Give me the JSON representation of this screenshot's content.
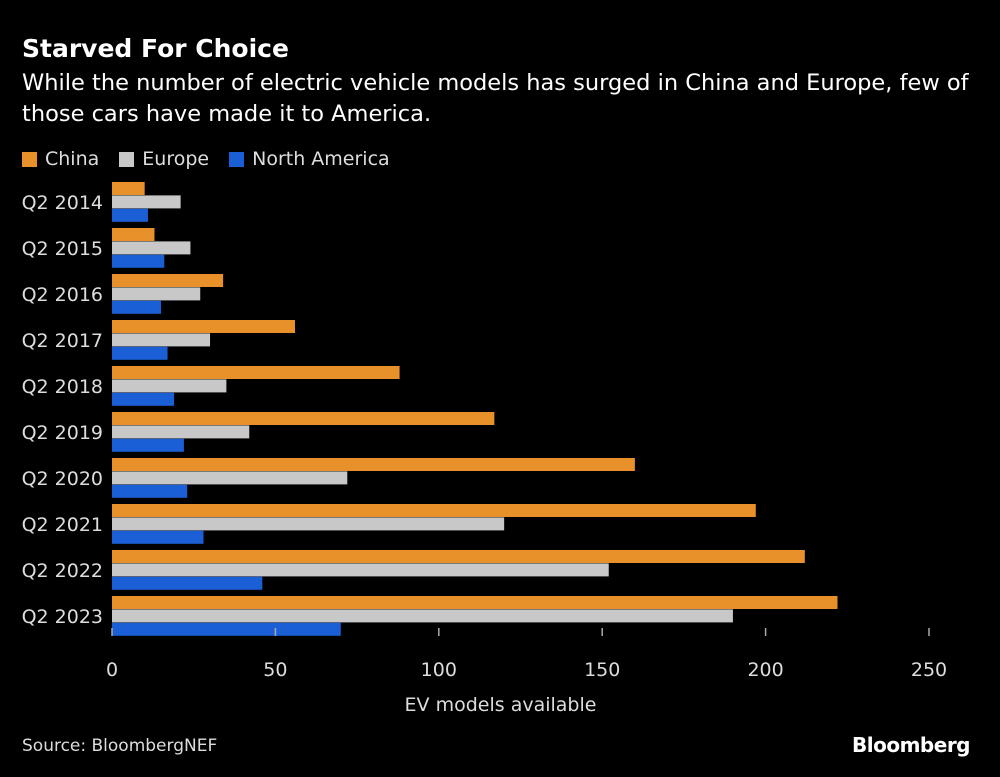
{
  "title": "Starved For Choice",
  "subtitle": "While the number of electric vehicle models has surged in China and Europe, few of those cars have made it to America.",
  "source": "Source: BloombergNEF",
  "logo": "Bloomberg",
  "chart_data": {
    "type": "bar",
    "orientation": "horizontal",
    "categories": [
      "Q2 2014",
      "Q2 2015",
      "Q2 2016",
      "Q2 2017",
      "Q2 2018",
      "Q2 2019",
      "Q2 2020",
      "Q2 2021",
      "Q2 2022",
      "Q2 2023"
    ],
    "series": [
      {
        "name": "China",
        "color": "#e8902a",
        "values": [
          10,
          13,
          34,
          56,
          88,
          117,
          160,
          197,
          212,
          222
        ]
      },
      {
        "name": "Europe",
        "color": "#c8c8c8",
        "values": [
          21,
          24,
          27,
          30,
          35,
          42,
          72,
          120,
          152,
          190
        ]
      },
      {
        "name": "North America",
        "color": "#1a5fd6",
        "values": [
          11,
          16,
          15,
          17,
          19,
          22,
          23,
          28,
          46,
          70
        ]
      }
    ],
    "xlabel": "EV models available",
    "ylabel": "",
    "xlim": [
      0,
      250
    ],
    "xticks": [
      "0",
      "50",
      "100",
      "150",
      "200",
      "250"
    ],
    "grid": false,
    "legend": "top-left"
  }
}
